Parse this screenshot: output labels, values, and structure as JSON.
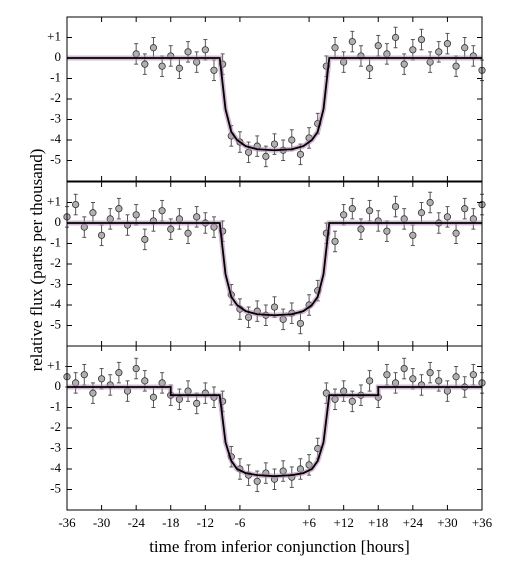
{
  "chart_data": [
    {
      "type": "scatter",
      "xlim": [
        -36,
        36
      ],
      "ylim": [
        -6,
        2
      ],
      "yticks": [
        {
          "value": 1,
          "label": "+1"
        },
        0,
        -1,
        -2,
        -3,
        -4,
        -5
      ],
      "series": [
        {
          "mode": "markers",
          "color": "#b0b0b0",
          "error": 0.5,
          "x": [
            -24,
            -22.5,
            -21,
            -19.5,
            -18,
            -16.5,
            -15,
            -13.5,
            -12,
            -10.5,
            -9,
            -7.5,
            -6,
            -4.5,
            -3,
            -1.5,
            0,
            1.5,
            3,
            4.5,
            6,
            7.5,
            9,
            10.5,
            12,
            13.5,
            15,
            16.5,
            18,
            19.5,
            21,
            22.5,
            24,
            25.5,
            27,
            28.5,
            30,
            31.5,
            33,
            34.5,
            36
          ],
          "values": [
            0.2,
            -0.3,
            0.5,
            -0.4,
            0.1,
            -0.5,
            0.3,
            -0.2,
            0.4,
            -0.6,
            -0.3,
            -3.8,
            -4.1,
            -4.6,
            -4.3,
            -4.8,
            -4.2,
            -4.5,
            -4.0,
            -4.7,
            -3.9,
            -3.2,
            -0.4,
            0.5,
            -0.2,
            0.8,
            0.1,
            -0.5,
            0.6,
            0.2,
            1.0,
            -0.3,
            0.4,
            0.9,
            -0.2,
            0.3,
            0.7,
            -0.4,
            0.5,
            0.1,
            -0.6
          ]
        },
        {
          "mode": "lines",
          "color": "#000000",
          "x": [
            -36,
            -9.5,
            -8.5,
            -7.5,
            -6.5,
            -5,
            -3,
            0,
            3,
            5,
            6.5,
            7.5,
            8.5,
            9.5,
            36
          ],
          "values": [
            0,
            0,
            -2.5,
            -3.6,
            -4.0,
            -4.3,
            -4.45,
            -4.5,
            -4.45,
            -4.3,
            -4.0,
            -3.6,
            -2.5,
            0,
            0
          ]
        }
      ]
    },
    {
      "type": "scatter",
      "xlim": [
        -36,
        36
      ],
      "ylim": [
        -6,
        2
      ],
      "ylabel": "relative flux (parts per thousand)",
      "yticks": [
        {
          "value": 1,
          "label": "+1"
        },
        0,
        -1,
        -2,
        -3,
        -4,
        -5
      ],
      "series": [
        {
          "mode": "markers",
          "color": "#b0b0b0",
          "error": 0.5,
          "x": [
            -36,
            -34.5,
            -33,
            -31.5,
            -30,
            -28.5,
            -27,
            -25.5,
            -24,
            -22.5,
            -21,
            -19.5,
            -18,
            -16.5,
            -15,
            -13.5,
            -12,
            -10.5,
            -9,
            -7.5,
            -6,
            -4.5,
            -3,
            -1.5,
            0,
            1.5,
            3,
            4.5,
            6,
            7.5,
            9,
            10.5,
            12,
            13.5,
            15,
            16.5,
            18,
            19.5,
            21,
            22.5,
            24,
            25.5,
            27,
            28.5,
            30,
            31.5,
            33,
            34.5,
            36
          ],
          "values": [
            0.3,
            0.9,
            -0.2,
            0.5,
            -0.6,
            0.2,
            0.7,
            -0.1,
            0.4,
            -0.8,
            0.1,
            0.6,
            -0.3,
            0.2,
            -0.5,
            0.3,
            0.0,
            -0.2,
            -0.4,
            -3.5,
            -4.2,
            -4.6,
            -4.3,
            -4.5,
            -4.1,
            -4.7,
            -4.4,
            -4.9,
            -4.0,
            -3.3,
            -0.5,
            -0.9,
            0.4,
            0.7,
            -0.3,
            0.6,
            0.1,
            -0.4,
            0.8,
            0.2,
            -0.6,
            0.5,
            1.0,
            0.0,
            0.3,
            -0.5,
            0.7,
            0.2,
            0.9
          ]
        },
        {
          "mode": "lines",
          "color": "#000000",
          "x": [
            -36,
            -9.5,
            -8.5,
            -7.5,
            -6.5,
            -5,
            -3,
            0,
            3,
            5,
            6.5,
            7.5,
            8.5,
            9.5,
            36
          ],
          "values": [
            0,
            0,
            -2.5,
            -3.6,
            -4.0,
            -4.3,
            -4.45,
            -4.5,
            -4.45,
            -4.3,
            -4.0,
            -3.6,
            -2.5,
            0,
            0
          ]
        }
      ]
    },
    {
      "type": "scatter",
      "xlim": [
        -36,
        36
      ],
      "ylim": [
        -6,
        2
      ],
      "xlabel": "time from inferior conjunction [hours]",
      "xticks": [
        -36,
        -30,
        -24,
        -18,
        -12,
        -6,
        {
          "value": 6,
          "label": "+6"
        },
        {
          "value": 12,
          "label": "+12"
        },
        {
          "value": 18,
          "label": "+18"
        },
        {
          "value": 24,
          "label": "+24"
        },
        {
          "value": 30,
          "label": "+30"
        },
        {
          "value": 36,
          "label": "+36"
        }
      ],
      "yticks": [
        {
          "value": 1,
          "label": "+1"
        },
        0,
        -1,
        -2,
        -3,
        -4,
        -5
      ],
      "series": [
        {
          "mode": "markers",
          "color": "#b0b0b0",
          "error": 0.5,
          "x": [
            -36,
            -34.5,
            -33,
            -31.5,
            -30,
            -28.5,
            -27,
            -25.5,
            -24,
            -22.5,
            -21,
            -19.5,
            -18,
            -16.5,
            -15,
            -13.5,
            -12,
            -10.5,
            -9,
            -7.5,
            -6,
            -4.5,
            -3,
            -1.5,
            0,
            1.5,
            3,
            4.5,
            6,
            7.5,
            9,
            10.5,
            12,
            13.5,
            15,
            16.5,
            18,
            19.5,
            21,
            22.5,
            24,
            25.5,
            27,
            28.5,
            30,
            31.5,
            33,
            34.5,
            36
          ],
          "values": [
            0.5,
            0.2,
            0.6,
            -0.3,
            0.4,
            0.1,
            0.7,
            -0.2,
            0.9,
            0.3,
            -0.5,
            0.2,
            -0.4,
            -0.6,
            -0.2,
            -0.8,
            -0.3,
            -0.5,
            -0.7,
            -3.4,
            -4.0,
            -4.3,
            -4.6,
            -4.2,
            -4.5,
            -4.1,
            -4.4,
            -4.0,
            -3.8,
            -3.0,
            -0.3,
            -0.6,
            -0.2,
            -0.7,
            -0.4,
            0.3,
            -0.5,
            0.6,
            0.2,
            0.9,
            0.4,
            0.1,
            0.7,
            0.3,
            -0.2,
            0.5,
            0.0,
            0.6,
            0.2
          ]
        },
        {
          "mode": "lines",
          "color": "#000000",
          "x": [
            -36,
            -18,
            -18,
            -9.5,
            -8.5,
            -7.5,
            -6.5,
            -5,
            -3,
            0,
            3,
            5,
            6.5,
            7.5,
            8.5,
            9.5,
            18,
            18,
            36
          ],
          "values": [
            0,
            0,
            -0.4,
            -0.4,
            -2.7,
            -3.6,
            -4.0,
            -4.2,
            -4.3,
            -4.35,
            -4.3,
            -4.2,
            -4.0,
            -3.6,
            -2.7,
            -0.4,
            -0.4,
            0,
            0
          ]
        }
      ]
    }
  ]
}
